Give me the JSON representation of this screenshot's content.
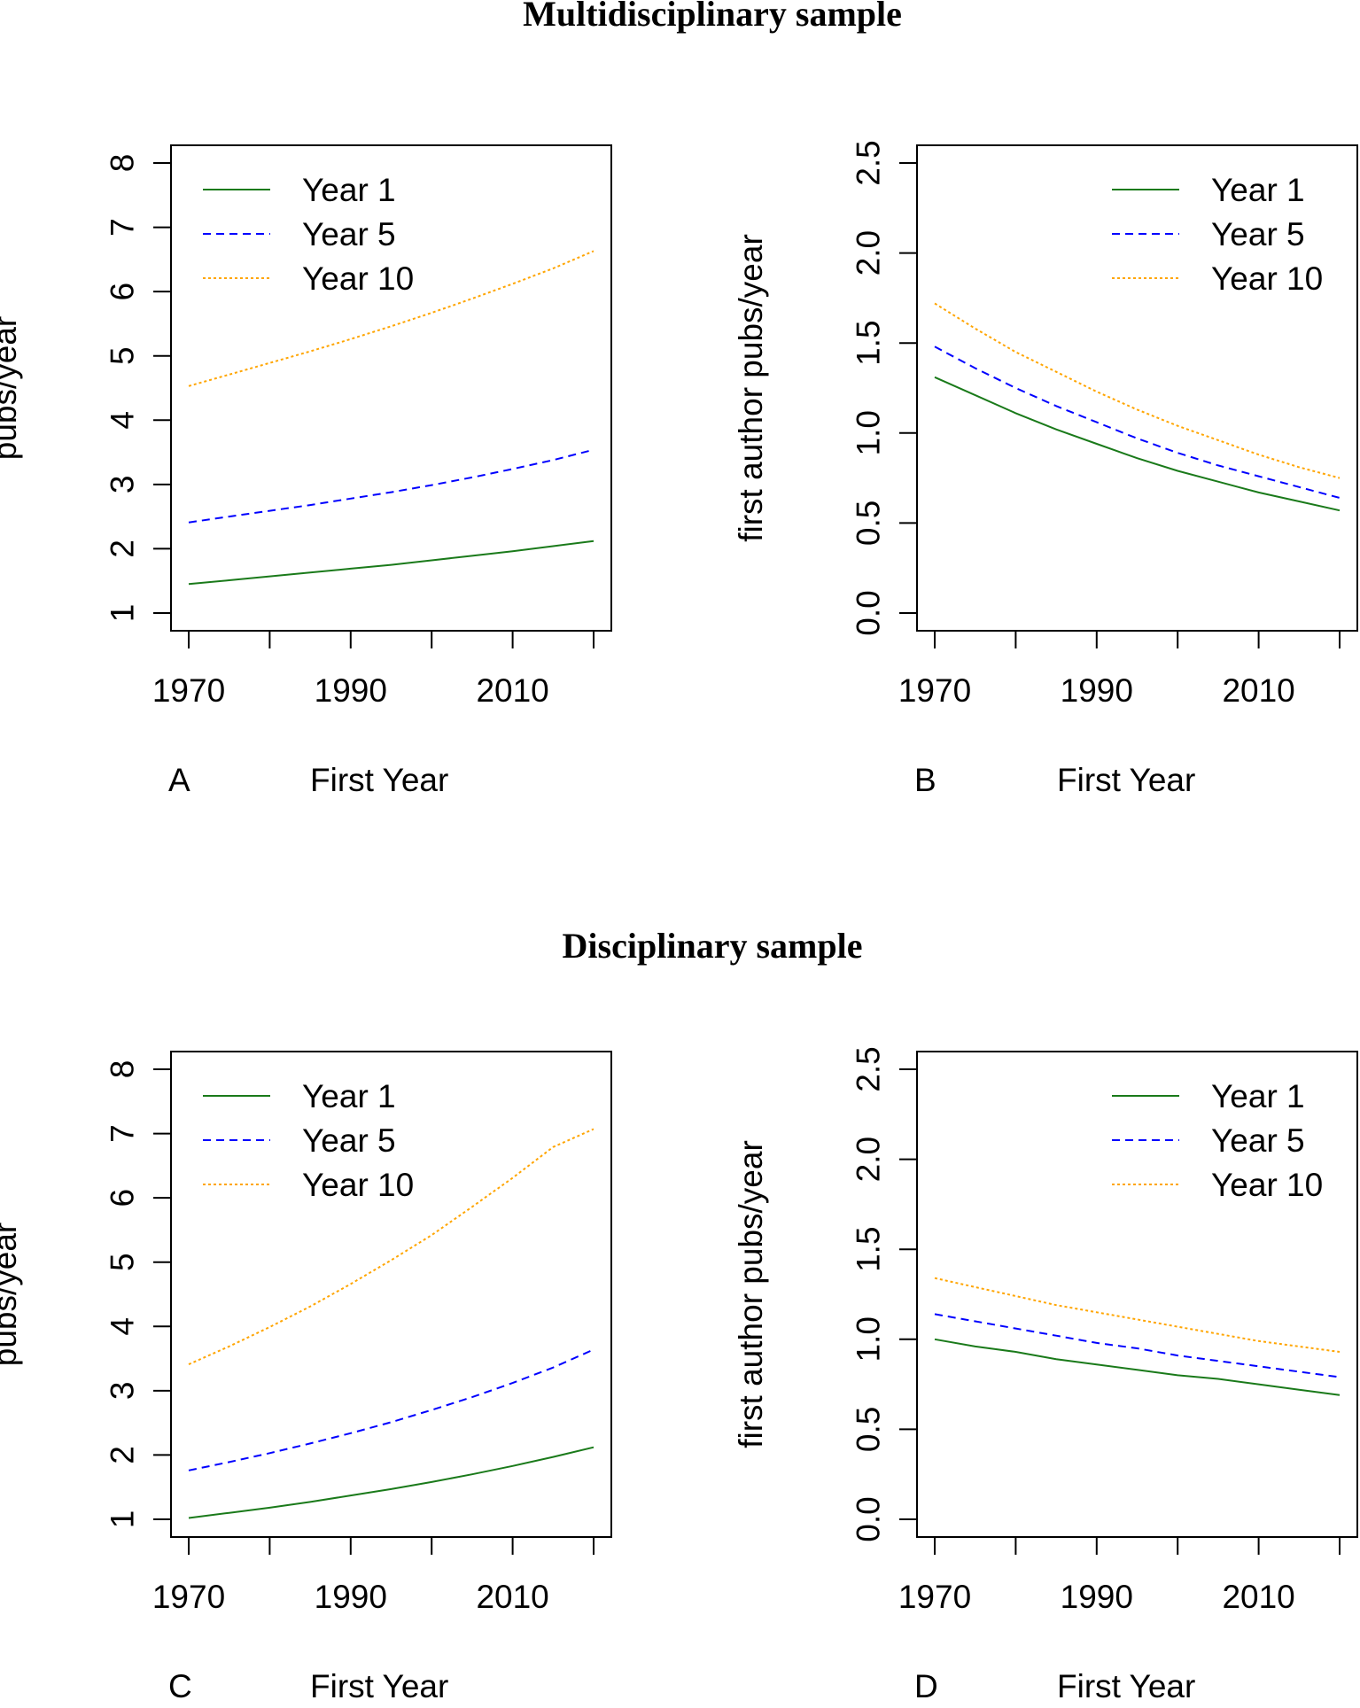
{
  "sections": [
    {
      "title": "Multidisciplinary sample"
    },
    {
      "title": "Disciplinary sample"
    }
  ],
  "series_colors": {
    "Year 1": "#1a7a1a",
    "Year 5": "#0000ff",
    "Year 10": "#ffa500"
  },
  "chart_data": [
    {
      "panel": "A",
      "type": "line",
      "xlabel": "First Year",
      "ylabel": "pubs/year",
      "xlim": [
        1970,
        2020
      ],
      "ylim": [
        1,
        8
      ],
      "xticks": [
        1970,
        1990,
        2010
      ],
      "yticks": [
        1,
        2,
        3,
        4,
        5,
        6,
        7,
        8
      ],
      "legend_position": "top-left",
      "grid": false,
      "x": [
        1970,
        1975,
        1980,
        1985,
        1990,
        1995,
        2000,
        2005,
        2010,
        2015,
        2020
      ],
      "series": [
        {
          "name": "Year 1",
          "values": [
            1.45,
            1.51,
            1.57,
            1.63,
            1.69,
            1.75,
            1.82,
            1.89,
            1.96,
            2.04,
            2.12
          ]
        },
        {
          "name": "Year 5",
          "values": [
            2.41,
            2.5,
            2.59,
            2.68,
            2.78,
            2.88,
            2.99,
            3.11,
            3.24,
            3.38,
            3.54
          ]
        },
        {
          "name": "Year 10",
          "values": [
            4.53,
            4.71,
            4.89,
            5.07,
            5.26,
            5.46,
            5.67,
            5.89,
            6.12,
            6.36,
            6.63
          ]
        }
      ]
    },
    {
      "panel": "B",
      "type": "line",
      "xlabel": "First Year",
      "ylabel": "first author pubs/year",
      "xlim": [
        1970,
        2020
      ],
      "ylim": [
        0,
        2.5
      ],
      "xticks": [
        1970,
        1990,
        2010
      ],
      "yticks": [
        0.0,
        0.5,
        1.0,
        1.5,
        2.0,
        2.5
      ],
      "ytick_labels": [
        "0.0",
        "0.5",
        "1.0",
        "1.5",
        "2.0",
        "2.5"
      ],
      "legend_position": "top-right",
      "grid": false,
      "x": [
        1970,
        1975,
        1980,
        1985,
        1990,
        1995,
        2000,
        2005,
        2010,
        2015,
        2020
      ],
      "series": [
        {
          "name": "Year 1",
          "values": [
            1.31,
            1.21,
            1.11,
            1.02,
            0.94,
            0.86,
            0.79,
            0.73,
            0.67,
            0.62,
            0.57
          ]
        },
        {
          "name": "Year 5",
          "values": [
            1.48,
            1.36,
            1.25,
            1.15,
            1.06,
            0.97,
            0.89,
            0.82,
            0.76,
            0.7,
            0.64
          ]
        },
        {
          "name": "Year 10",
          "values": [
            1.72,
            1.58,
            1.45,
            1.34,
            1.23,
            1.13,
            1.04,
            0.96,
            0.88,
            0.81,
            0.75
          ]
        }
      ]
    },
    {
      "panel": "C",
      "type": "line",
      "xlabel": "First Year",
      "ylabel": "pubs/year",
      "xlim": [
        1970,
        2020
      ],
      "ylim": [
        1,
        8
      ],
      "xticks": [
        1970,
        1990,
        2010
      ],
      "yticks": [
        1,
        2,
        3,
        4,
        5,
        6,
        7,
        8
      ],
      "legend_position": "top-left",
      "grid": false,
      "x": [
        1970,
        1975,
        1980,
        1985,
        1990,
        1995,
        2000,
        2005,
        2010,
        2015,
        2020
      ],
      "series": [
        {
          "name": "Year 1",
          "values": [
            1.02,
            1.1,
            1.18,
            1.27,
            1.37,
            1.47,
            1.58,
            1.7,
            1.83,
            1.97,
            2.12
          ]
        },
        {
          "name": "Year 5",
          "values": [
            1.76,
            1.89,
            2.03,
            2.18,
            2.34,
            2.51,
            2.7,
            2.9,
            3.12,
            3.36,
            3.64
          ]
        },
        {
          "name": "Year 10",
          "values": [
            3.41,
            3.69,
            3.99,
            4.31,
            4.66,
            5.03,
            5.42,
            5.86,
            6.31,
            6.79,
            7.07
          ]
        }
      ]
    },
    {
      "panel": "D",
      "type": "line",
      "xlabel": "First Year",
      "ylabel": "first author pubs/year",
      "xlim": [
        1970,
        2020
      ],
      "ylim": [
        0,
        2.5
      ],
      "xticks": [
        1970,
        1990,
        2010
      ],
      "yticks": [
        0.0,
        0.5,
        1.0,
        1.5,
        2.0,
        2.5
      ],
      "ytick_labels": [
        "0.0",
        "0.5",
        "1.0",
        "1.5",
        "2.0",
        "2.5"
      ],
      "legend_position": "top-right",
      "grid": false,
      "x": [
        1970,
        1975,
        1980,
        1985,
        1990,
        1995,
        2000,
        2005,
        2010,
        2015,
        2020
      ],
      "series": [
        {
          "name": "Year 1",
          "values": [
            1.0,
            0.96,
            0.93,
            0.89,
            0.86,
            0.83,
            0.8,
            0.78,
            0.75,
            0.72,
            0.69
          ]
        },
        {
          "name": "Year 5",
          "values": [
            1.14,
            1.1,
            1.06,
            1.02,
            0.98,
            0.95,
            0.91,
            0.88,
            0.85,
            0.82,
            0.79
          ]
        },
        {
          "name": "Year 10",
          "values": [
            1.34,
            1.29,
            1.24,
            1.19,
            1.15,
            1.11,
            1.07,
            1.03,
            0.99,
            0.96,
            0.93
          ]
        }
      ]
    }
  ]
}
